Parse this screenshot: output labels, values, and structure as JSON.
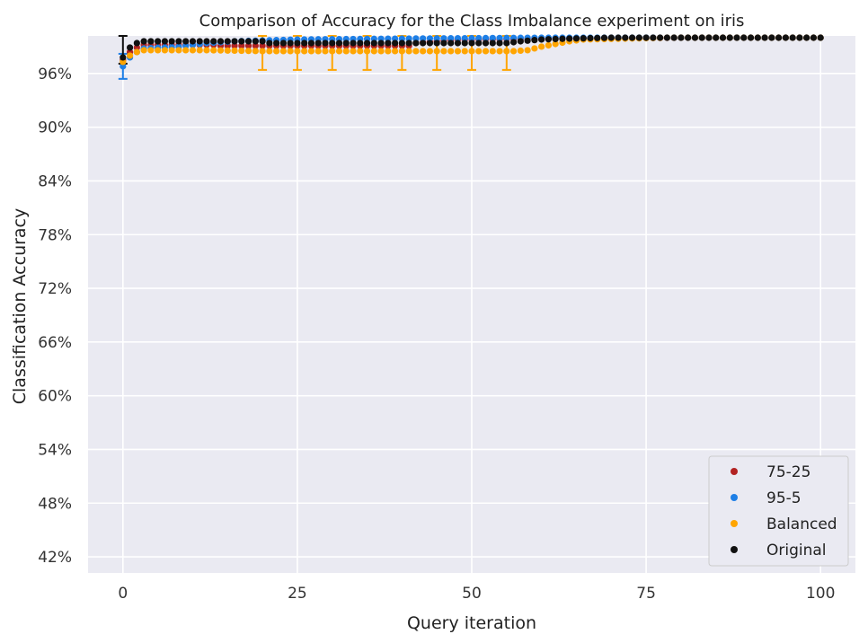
{
  "chart_data": {
    "type": "scatter",
    "title": "Comparison of Accuracy for the Class Imbalance experiment on iris",
    "xlabel": "Query iteration",
    "ylabel": "Classification Accuracy",
    "xlim": [
      -5,
      105
    ],
    "ylim": [
      40.2,
      100.2
    ],
    "xticks": [
      0,
      25,
      50,
      75,
      100
    ],
    "yticks": [
      42,
      48,
      54,
      60,
      66,
      72,
      78,
      84,
      90,
      96
    ],
    "ytick_labels": [
      "42%",
      "48%",
      "54%",
      "60%",
      "66%",
      "72%",
      "78%",
      "84%",
      "90%",
      "96%"
    ],
    "grid": true,
    "legend_position": "bottom-right",
    "background": "#eaeaf2",
    "series": [
      {
        "name": "75-25",
        "color": "#b22222",
        "points": [
          [
            0,
            97.5
          ],
          [
            1,
            98.4
          ],
          [
            2,
            98.9
          ],
          [
            3,
            99.2
          ],
          [
            13,
            99.2
          ],
          [
            14,
            99.1
          ],
          [
            41,
            99.1
          ],
          [
            42,
            99.4
          ],
          [
            45,
            99.6
          ],
          [
            48,
            99.8
          ],
          [
            60,
            99.9
          ],
          [
            80,
            100
          ],
          [
            100,
            100
          ]
        ],
        "error_bars": []
      },
      {
        "name": "95-5",
        "color": "#1e7fe6",
        "points": [
          [
            0,
            96.8
          ],
          [
            1,
            97.8
          ],
          [
            2,
            98.4
          ],
          [
            3,
            98.8
          ],
          [
            8,
            99.0
          ],
          [
            12,
            99.4
          ],
          [
            16,
            99.6
          ],
          [
            25,
            99.8
          ],
          [
            40,
            99.9
          ],
          [
            60,
            100
          ],
          [
            100,
            100
          ]
        ],
        "error_bars": [
          {
            "x": 0,
            "low": 95.4,
            "high": 98.2
          }
        ]
      },
      {
        "name": "Balanced",
        "color": "#ffa500",
        "points": [
          [
            0,
            97.3
          ],
          [
            1,
            98.0
          ],
          [
            2,
            98.4
          ],
          [
            3,
            98.6
          ],
          [
            12,
            98.6
          ],
          [
            20,
            98.5
          ],
          [
            56,
            98.5
          ],
          [
            58,
            98.6
          ],
          [
            60,
            99.0
          ],
          [
            62,
            99.3
          ],
          [
            64,
            99.6
          ],
          [
            66,
            99.8
          ],
          [
            72,
            99.9
          ],
          [
            78,
            100
          ],
          [
            100,
            100
          ]
        ],
        "error_bars": [
          {
            "x": 20,
            "low": 96.4,
            "high": 100.2
          },
          {
            "x": 25,
            "low": 96.4,
            "high": 100.2
          },
          {
            "x": 30,
            "low": 96.4,
            "high": 100.2
          },
          {
            "x": 35,
            "low": 96.4,
            "high": 100.2
          },
          {
            "x": 40,
            "low": 96.4,
            "high": 100.2
          },
          {
            "x": 45,
            "low": 96.4,
            "high": 100.2
          },
          {
            "x": 50,
            "low": 96.4,
            "high": 100.2
          },
          {
            "x": 55,
            "low": 96.4,
            "high": 100.2
          }
        ]
      },
      {
        "name": "Original",
        "color": "#111111",
        "points": [
          [
            0,
            97.8
          ],
          [
            1,
            98.9
          ],
          [
            2,
            99.4
          ],
          [
            3,
            99.6
          ],
          [
            20,
            99.6
          ],
          [
            21,
            99.4
          ],
          [
            55,
            99.4
          ],
          [
            57,
            99.6
          ],
          [
            60,
            99.8
          ],
          [
            64,
            99.9
          ],
          [
            70,
            100
          ],
          [
            100,
            100
          ]
        ],
        "error_bars": [
          {
            "x": 0,
            "low": 97.1,
            "high": 100.2
          }
        ]
      }
    ]
  }
}
